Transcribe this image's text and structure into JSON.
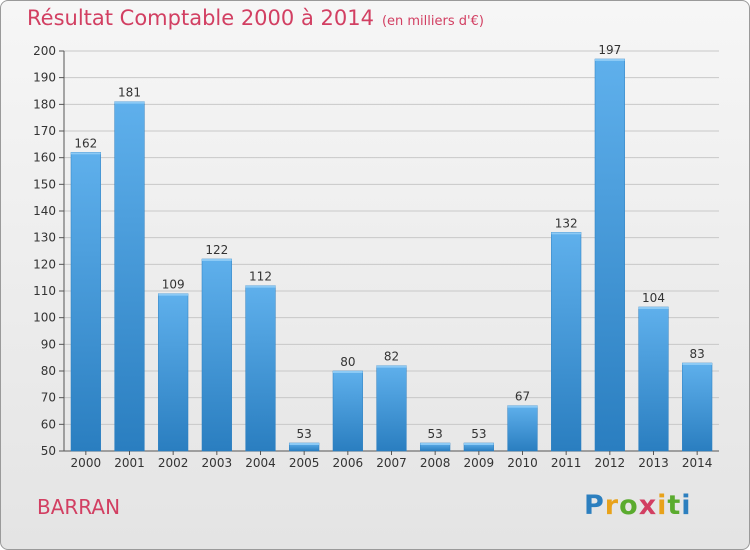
{
  "title": "Résultat Comptable 2000 à 2014",
  "subtitle": "(en milliers d'€)",
  "commune": "BARRAN",
  "brand": {
    "letters": [
      "P",
      "r",
      "o",
      "x",
      "i",
      "t",
      "i"
    ],
    "colors": [
      "#2c7fbf",
      "#e8a21a",
      "#5aab2e",
      "#d23f62",
      "#e8a21a",
      "#5aab2e",
      "#2c7fbf"
    ]
  },
  "colors": {
    "bar": "#3f97db",
    "bar_light": "#5fb0ec",
    "bar_dark": "#2a7ec0",
    "accent": "#d23f62"
  },
  "chart_data": {
    "type": "bar",
    "categories": [
      "2000",
      "2001",
      "2002",
      "2003",
      "2004",
      "2005",
      "2006",
      "2007",
      "2008",
      "2009",
      "2010",
      "2011",
      "2012",
      "2013",
      "2014"
    ],
    "values": [
      162,
      181,
      109,
      122,
      112,
      53,
      80,
      82,
      53,
      53,
      67,
      132,
      197,
      104,
      83
    ],
    "yticks": [
      50,
      60,
      70,
      80,
      90,
      100,
      110,
      120,
      130,
      140,
      150,
      160,
      170,
      180,
      190,
      200
    ],
    "ylim": [
      50,
      200
    ],
    "grid": true,
    "title": "Résultat Comptable 2000 à 2014",
    "xlabel": "",
    "ylabel": ""
  }
}
